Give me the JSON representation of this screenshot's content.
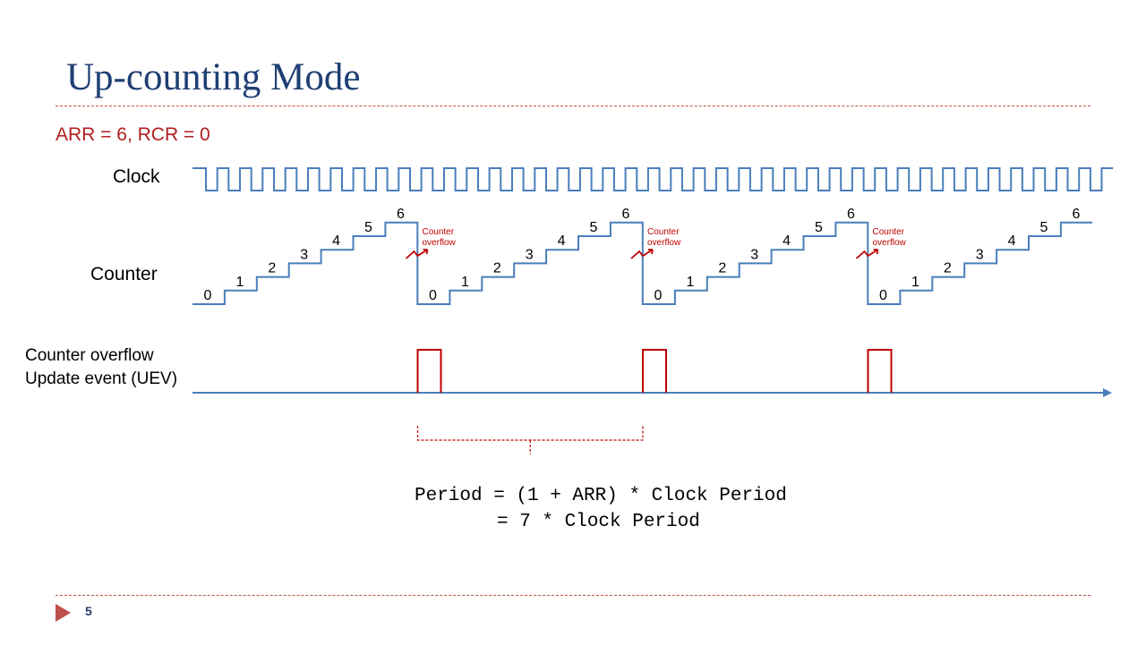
{
  "title": "Up-counting Mode",
  "param_text": "ARR = 6, RCR = 0",
  "labels": {
    "clock": "Clock",
    "counter": "Counter",
    "uev_line1": "Counter overflow",
    "uev_line2": "Update event (UEV)"
  },
  "counter_values": [
    "0",
    "1",
    "2",
    "3",
    "4",
    "5",
    "6"
  ],
  "overflow_note": [
    "Counter",
    "overflow"
  ],
  "formula": {
    "line1": "Period = (1 + ARR) * Clock Period",
    "line2": "= 7 * Clock Period"
  },
  "page_number": "5",
  "colors": {
    "signal": "#4a7ebb",
    "accent": "#c00000",
    "title": "#1f3f73"
  }
}
